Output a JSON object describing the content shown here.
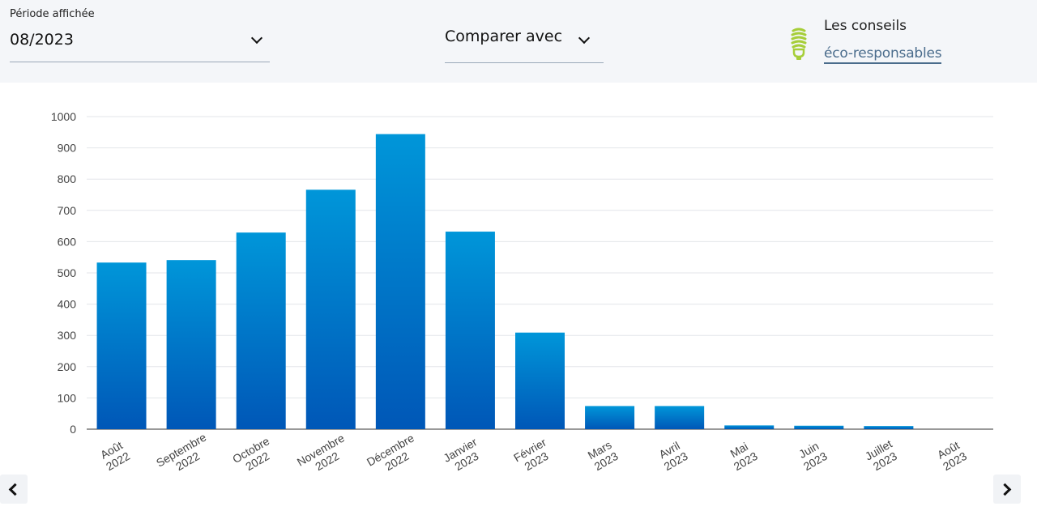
{
  "header": {
    "period_label": "Période affichée",
    "period_value": "08/2023",
    "compare_label": "Comparer avec",
    "eco_title": "Les conseils",
    "eco_link": "éco-responsables"
  },
  "colors": {
    "bar_top": "#0096d9",
    "bar_bottom": "#0057b7",
    "grid": "#e3e6ea",
    "axis": "#333333",
    "eco_icon": "#a6ce39"
  },
  "icons": {
    "period_dropdown": "chevron-down-icon",
    "compare_dropdown": "chevron-down-icon",
    "eco": "lightbulb-icon",
    "prev": "chevron-left-icon",
    "next": "chevron-right-icon"
  },
  "chart_data": {
    "type": "bar",
    "categories": [
      "Août 2022",
      "Septembre 2022",
      "Octobre 2022",
      "Novembre 2022",
      "Décembre 2022",
      "Janvier 2023",
      "Février 2023",
      "Mars 2023",
      "Avril 2023",
      "Mai 2023",
      "Juin 2023",
      "Juillet 2023",
      "Août 2023"
    ],
    "category_lines": [
      [
        "Août",
        "2022"
      ],
      [
        "Septembre",
        "2022"
      ],
      [
        "Octobre",
        "2022"
      ],
      [
        "Novembre",
        "2022"
      ],
      [
        "Décembre",
        "2022"
      ],
      [
        "Janvier",
        "2023"
      ],
      [
        "Février",
        "2023"
      ],
      [
        "Mars",
        "2023"
      ],
      [
        "Avril",
        "2023"
      ],
      [
        "Mai",
        "2023"
      ],
      [
        "Juin",
        "2023"
      ],
      [
        "Juillet",
        "2023"
      ],
      [
        "Août",
        "2023"
      ]
    ],
    "values": [
      533,
      541,
      629,
      766,
      944,
      632,
      309,
      74,
      74,
      12,
      11,
      10,
      0
    ],
    "title": "",
    "xlabel": "",
    "ylabel": "",
    "ylim": [
      0,
      1000
    ],
    "yticks": [
      0,
      100,
      200,
      300,
      400,
      500,
      600,
      700,
      800,
      900,
      1000
    ],
    "grid": true,
    "legend": false
  }
}
